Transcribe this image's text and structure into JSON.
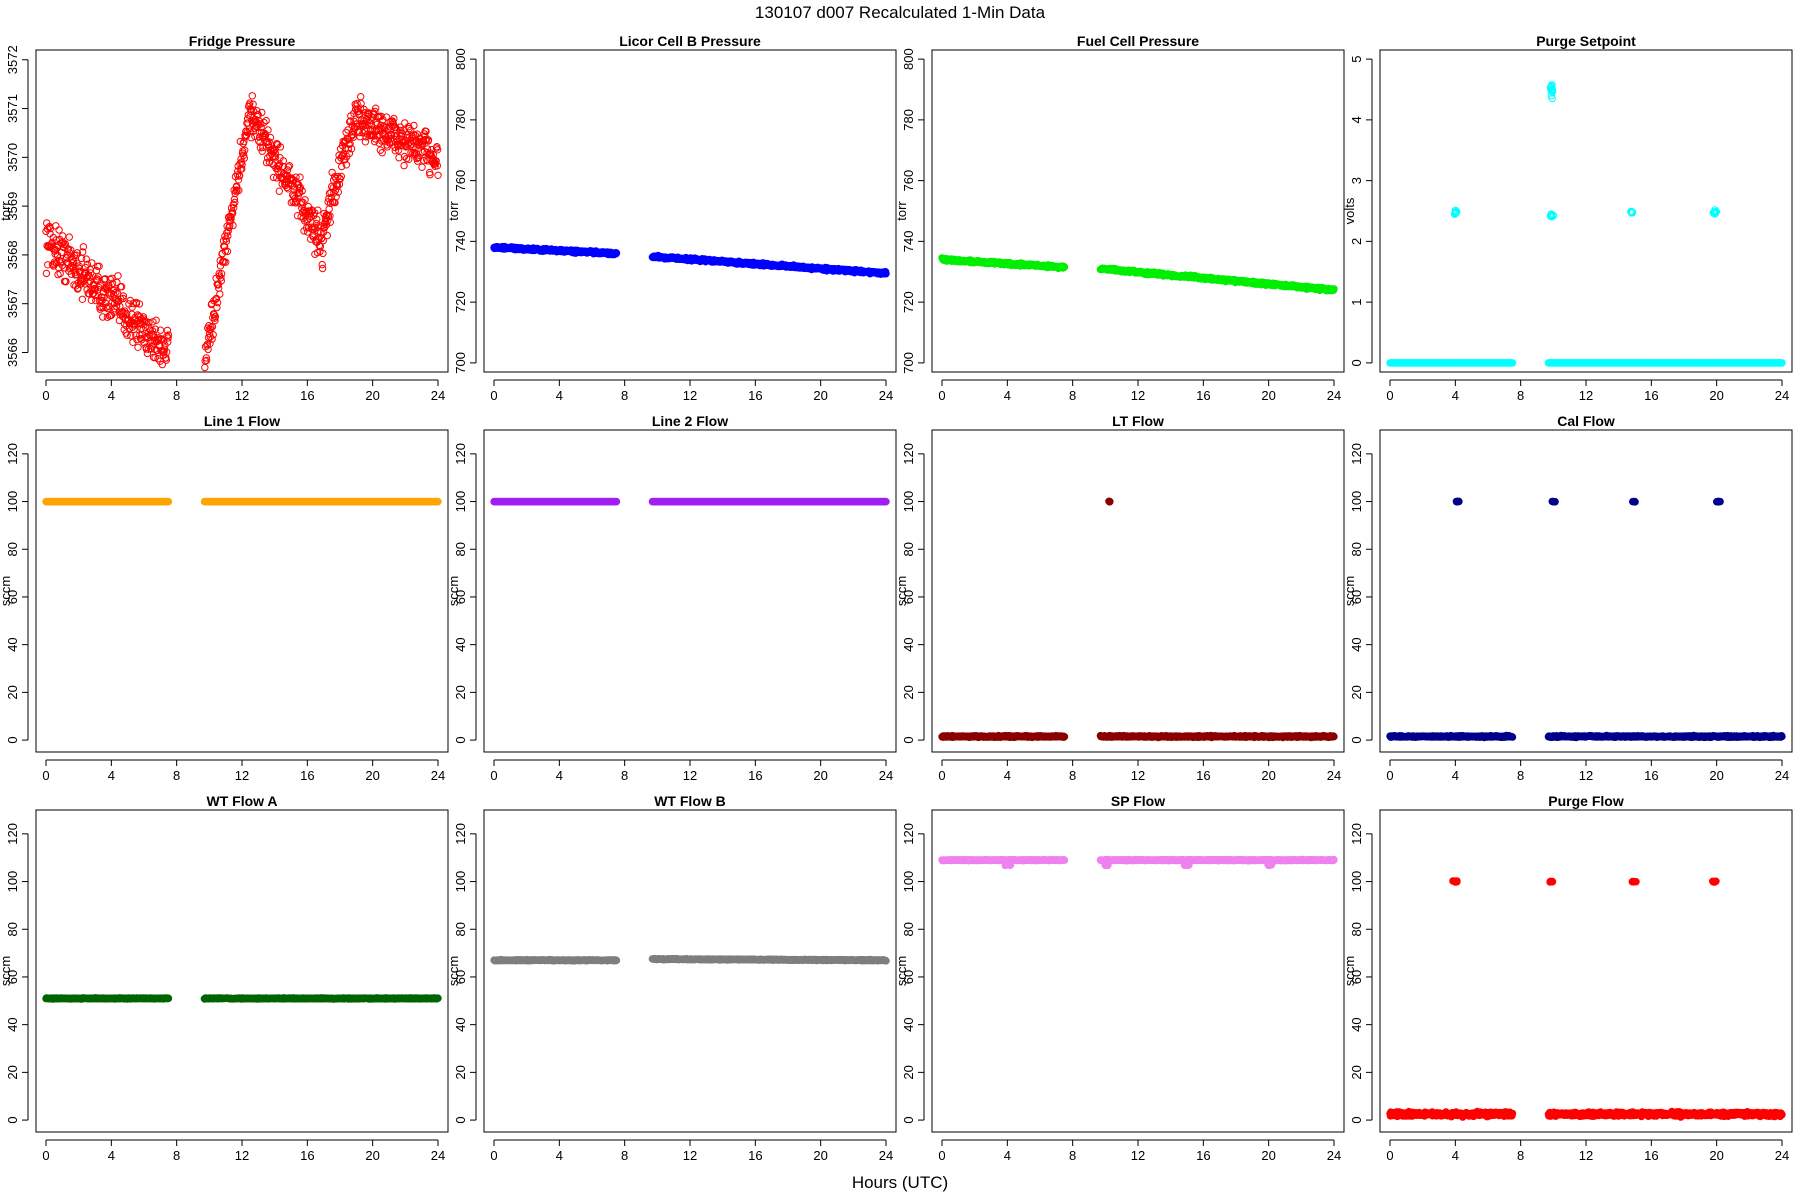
{
  "main_title": "130107   d007   Recalculated 1-Min Data",
  "x_caption": "Hours (UTC)",
  "chart_data": [
    {
      "type": "scatter",
      "title": "Fridge Pressure",
      "ylabel": "torr",
      "color": "#ff0000",
      "marker": "open-circle",
      "xlim": [
        0,
        24
      ],
      "ylim": [
        3565.6,
        3572.2
      ],
      "x_ticks": [
        0,
        4,
        8,
        12,
        16,
        20,
        24
      ],
      "y_ticks": [
        3566,
        3567,
        3568,
        3569,
        3570,
        3571,
        3572
      ],
      "segments": [
        {
          "x0": 0.0,
          "x1": 7.5,
          "y_start": 3568.3,
          "y_end": 3566.0,
          "noise": 0.45,
          "density": 45
        },
        {
          "x0": 9.7,
          "x1": 12.5,
          "y_start": 3565.7,
          "y_end": 3571.0,
          "noise": 0.35,
          "density": 45
        },
        {
          "x0": 12.5,
          "x1": 17.0,
          "y_start": 3570.9,
          "y_end": 3568.2,
          "noise": 0.4,
          "density": 45
        },
        {
          "x0": 17.0,
          "x1": 19.0,
          "y_start": 3568.6,
          "y_end": 3570.9,
          "noise": 0.4,
          "density": 45
        },
        {
          "x0": 19.0,
          "x1": 24.0,
          "y_start": 3570.8,
          "y_end": 3570.0,
          "noise": 0.4,
          "density": 45
        }
      ]
    },
    {
      "type": "scatter",
      "title": "Licor Cell B Pressure",
      "ylabel": "torr",
      "color": "#0000ff",
      "marker": "filled-circle",
      "xlim": [
        0,
        24
      ],
      "ylim": [
        697,
        803
      ],
      "x_ticks": [
        0,
        4,
        8,
        12,
        16,
        20,
        24
      ],
      "y_ticks": [
        700,
        720,
        740,
        760,
        780,
        800
      ],
      "segments": [
        {
          "x0": 0.0,
          "x1": 7.5,
          "y_start": 738,
          "y_end": 736,
          "noise": 0.4,
          "density": 40
        },
        {
          "x0": 9.7,
          "x1": 24.0,
          "y_start": 735,
          "y_end": 729.5,
          "noise": 0.4,
          "density": 40
        }
      ]
    },
    {
      "type": "scatter",
      "title": "Fuel Cell Pressure",
      "ylabel": "torr",
      "color": "#00ee00",
      "marker": "filled-circle",
      "xlim": [
        0,
        24
      ],
      "ylim": [
        697,
        803
      ],
      "x_ticks": [
        0,
        4,
        8,
        12,
        16,
        20,
        24
      ],
      "y_ticks": [
        700,
        720,
        740,
        760,
        780,
        800
      ],
      "segments": [
        {
          "x0": 0.0,
          "x1": 7.5,
          "y_start": 734,
          "y_end": 731.5,
          "noise": 0.4,
          "density": 40
        },
        {
          "x0": 9.7,
          "x1": 24.0,
          "y_start": 731,
          "y_end": 724,
          "noise": 0.4,
          "density": 40
        }
      ]
    },
    {
      "type": "scatter",
      "title": "Purge Setpoint",
      "ylabel": "volts",
      "color": "#00ffff",
      "marker": "open-circle",
      "xlim": [
        0,
        24
      ],
      "ylim": [
        -0.15,
        5.15
      ],
      "x_ticks": [
        0,
        4,
        8,
        12,
        16,
        20,
        24
      ],
      "y_ticks": [
        0,
        1,
        2,
        3,
        4,
        5
      ],
      "segments": [
        {
          "x0": 0.0,
          "x1": 7.5,
          "y_start": 0,
          "y_end": 0,
          "noise": 0,
          "density": 40
        },
        {
          "x0": 9.7,
          "x1": 24.0,
          "y_start": 0,
          "y_end": 0,
          "noise": 0,
          "density": 40
        }
      ],
      "clusters": [
        {
          "x": 4.0,
          "y": 2.48,
          "spread_x": 0.15,
          "spread_y": 0.05,
          "n": 10
        },
        {
          "x": 9.9,
          "y": 2.43,
          "spread_x": 0.15,
          "spread_y": 0.05,
          "n": 10
        },
        {
          "x": 14.8,
          "y": 2.47,
          "spread_x": 0.12,
          "spread_y": 0.04,
          "n": 8
        },
        {
          "x": 19.9,
          "y": 2.48,
          "spread_x": 0.15,
          "spread_y": 0.05,
          "n": 10
        },
        {
          "x": 9.9,
          "y": 4.5,
          "spread_x": 0.12,
          "spread_y": 0.25,
          "n": 14
        }
      ]
    },
    {
      "type": "scatter",
      "title": "Line 1 Flow",
      "ylabel": "sccm",
      "color": "#ffa500",
      "marker": "filled-circle",
      "xlim": [
        0,
        24
      ],
      "ylim": [
        -5,
        130
      ],
      "x_ticks": [
        0,
        4,
        8,
        12,
        16,
        20,
        24
      ],
      "y_ticks": [
        0,
        20,
        40,
        60,
        80,
        100,
        120
      ],
      "segments": [
        {
          "x0": 0.0,
          "x1": 7.5,
          "y_start": 100,
          "y_end": 100,
          "noise": 0,
          "density": 40
        },
        {
          "x0": 9.7,
          "x1": 24.0,
          "y_start": 100,
          "y_end": 100,
          "noise": 0,
          "density": 40
        }
      ]
    },
    {
      "type": "scatter",
      "title": "Line 2 Flow",
      "ylabel": "sccm",
      "color": "#a020f0",
      "marker": "filled-circle",
      "xlim": [
        0,
        24
      ],
      "ylim": [
        -5,
        130
      ],
      "x_ticks": [
        0,
        4,
        8,
        12,
        16,
        20,
        24
      ],
      "y_ticks": [
        0,
        20,
        40,
        60,
        80,
        100,
        120
      ],
      "segments": [
        {
          "x0": 0.0,
          "x1": 7.5,
          "y_start": 100,
          "y_end": 100,
          "noise": 0,
          "density": 40
        },
        {
          "x0": 9.7,
          "x1": 24.0,
          "y_start": 100,
          "y_end": 100,
          "noise": 0,
          "density": 40
        }
      ]
    },
    {
      "type": "scatter",
      "title": "LT Flow",
      "ylabel": "sccm",
      "color": "#8b0000",
      "marker": "filled-circle",
      "xlim": [
        0,
        24
      ],
      "ylim": [
        -5,
        130
      ],
      "x_ticks": [
        0,
        4,
        8,
        12,
        16,
        20,
        24
      ],
      "y_ticks": [
        0,
        20,
        40,
        60,
        80,
        100,
        120
      ],
      "segments": [
        {
          "x0": 0.0,
          "x1": 7.5,
          "y_start": 1.5,
          "y_end": 1.5,
          "noise": 0.3,
          "density": 40
        },
        {
          "x0": 9.7,
          "x1": 24.0,
          "y_start": 1.5,
          "y_end": 1.5,
          "noise": 0.3,
          "density": 40
        }
      ],
      "clusters": [
        {
          "x": 10.3,
          "y": 100,
          "spread_x": 0.15,
          "spread_y": 0.2,
          "n": 6
        }
      ]
    },
    {
      "type": "scatter",
      "title": "Cal Flow",
      "ylabel": "sccm",
      "color": "#00008b",
      "marker": "filled-circle",
      "xlim": [
        0,
        24
      ],
      "ylim": [
        -5,
        130
      ],
      "x_ticks": [
        0,
        4,
        8,
        12,
        16,
        20,
        24
      ],
      "y_ticks": [
        0,
        20,
        40,
        60,
        80,
        100,
        120
      ],
      "segments": [
        {
          "x0": 0.0,
          "x1": 7.5,
          "y_start": 1.5,
          "y_end": 1.5,
          "noise": 0.3,
          "density": 40
        },
        {
          "x0": 9.7,
          "x1": 24.0,
          "y_start": 1.5,
          "y_end": 1.5,
          "noise": 0.3,
          "density": 40
        }
      ],
      "clusters": [
        {
          "x": 4.1,
          "y": 100,
          "spread_x": 0.2,
          "spread_y": 0.2,
          "n": 8
        },
        {
          "x": 10.0,
          "y": 100,
          "spread_x": 0.2,
          "spread_y": 0.2,
          "n": 8
        },
        {
          "x": 14.9,
          "y": 100,
          "spread_x": 0.15,
          "spread_y": 0.2,
          "n": 6
        },
        {
          "x": 20.1,
          "y": 100,
          "spread_x": 0.2,
          "spread_y": 0.2,
          "n": 8
        }
      ]
    },
    {
      "type": "scatter",
      "title": "WT Flow A",
      "ylabel": "sccm",
      "color": "#006400",
      "marker": "filled-circle",
      "xlim": [
        0,
        24
      ],
      "ylim": [
        -5,
        130
      ],
      "x_ticks": [
        0,
        4,
        8,
        12,
        16,
        20,
        24
      ],
      "y_ticks": [
        0,
        20,
        40,
        60,
        80,
        100,
        120
      ],
      "segments": [
        {
          "x0": 0.0,
          "x1": 7.5,
          "y_start": 51,
          "y_end": 51,
          "noise": 0.2,
          "density": 40
        },
        {
          "x0": 9.7,
          "x1": 24.0,
          "y_start": 51,
          "y_end": 51,
          "noise": 0.2,
          "density": 40
        }
      ]
    },
    {
      "type": "scatter",
      "title": "WT Flow B",
      "ylabel": "sccm",
      "color": "#7f7f7f",
      "marker": "filled-circle",
      "xlim": [
        0,
        24
      ],
      "ylim": [
        -5,
        130
      ],
      "x_ticks": [
        0,
        4,
        8,
        12,
        16,
        20,
        24
      ],
      "y_ticks": [
        0,
        20,
        40,
        60,
        80,
        100,
        120
      ],
      "segments": [
        {
          "x0": 0.0,
          "x1": 7.5,
          "y_start": 67,
          "y_end": 67,
          "noise": 0.2,
          "density": 40
        },
        {
          "x0": 9.7,
          "x1": 24.0,
          "y_start": 67.5,
          "y_end": 67,
          "noise": 0.2,
          "density": 40
        }
      ]
    },
    {
      "type": "scatter",
      "title": "SP Flow",
      "ylabel": "sccm",
      "color": "#ee82ee",
      "marker": "filled-circle",
      "xlim": [
        0,
        24
      ],
      "ylim": [
        -5,
        130
      ],
      "x_ticks": [
        0,
        4,
        8,
        12,
        16,
        20,
        24
      ],
      "y_ticks": [
        0,
        20,
        40,
        60,
        80,
        100,
        120
      ],
      "segments": [
        {
          "x0": 0.0,
          "x1": 7.5,
          "y_start": 109,
          "y_end": 109,
          "noise": 0.2,
          "density": 40
        },
        {
          "x0": 9.7,
          "x1": 24.0,
          "y_start": 109,
          "y_end": 109,
          "noise": 0.2,
          "density": 40
        }
      ],
      "clusters": [
        {
          "x": 4.1,
          "y": 107,
          "spread_x": 0.25,
          "spread_y": 0.4,
          "n": 10
        },
        {
          "x": 10.0,
          "y": 107,
          "spread_x": 0.25,
          "spread_y": 0.4,
          "n": 10
        },
        {
          "x": 15.0,
          "y": 107,
          "spread_x": 0.25,
          "spread_y": 0.4,
          "n": 10
        },
        {
          "x": 20.1,
          "y": 107,
          "spread_x": 0.25,
          "spread_y": 0.4,
          "n": 10
        }
      ]
    },
    {
      "type": "scatter",
      "title": "Purge Flow",
      "ylabel": "sccm",
      "color": "#ff0000",
      "marker": "filled-circle",
      "xlim": [
        0,
        24
      ],
      "ylim": [
        -5,
        130
      ],
      "x_ticks": [
        0,
        4,
        8,
        12,
        16,
        20,
        24
      ],
      "y_ticks": [
        0,
        20,
        40,
        60,
        80,
        100,
        120
      ],
      "segments": [
        {
          "x0": 0.0,
          "x1": 7.5,
          "y_start": 2.5,
          "y_end": 2.5,
          "noise": 0.8,
          "density": 45
        },
        {
          "x0": 9.7,
          "x1": 24.0,
          "y_start": 2.5,
          "y_end": 2.5,
          "noise": 0.8,
          "density": 45
        }
      ],
      "clusters": [
        {
          "x": 4.0,
          "y": 100,
          "spread_x": 0.2,
          "spread_y": 0.4,
          "n": 8
        },
        {
          "x": 9.9,
          "y": 100,
          "spread_x": 0.2,
          "spread_y": 0.4,
          "n": 8
        },
        {
          "x": 14.9,
          "y": 100,
          "spread_x": 0.2,
          "spread_y": 0.4,
          "n": 8
        },
        {
          "x": 19.9,
          "y": 100,
          "spread_x": 0.2,
          "spread_y": 0.4,
          "n": 8
        }
      ]
    }
  ]
}
